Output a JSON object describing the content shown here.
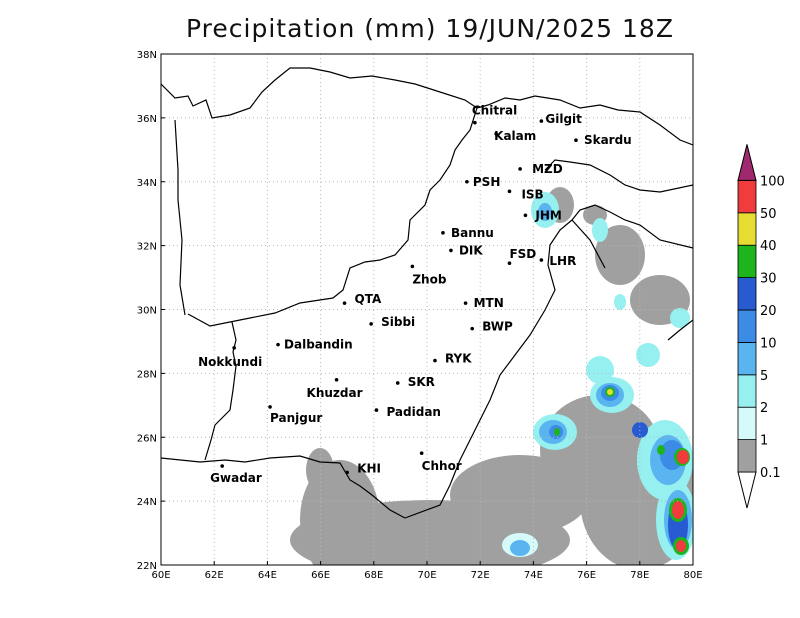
{
  "title": "Precipitation (mm) 19/JUN/2025 18Z",
  "map": {
    "lat_labels": [
      "22N",
      "24N",
      "26N",
      "28N",
      "30N",
      "32N",
      "34N",
      "36N",
      "38N"
    ],
    "lon_labels": [
      "60E",
      "62E",
      "64E",
      "66E",
      "68E",
      "70E",
      "72E",
      "74E",
      "76E",
      "78E",
      "80E"
    ],
    "lat_range": [
      22,
      38
    ],
    "lon_range": [
      60,
      80
    ],
    "grid": true,
    "cities": [
      {
        "name": "Chitral",
        "lon": 71.8,
        "lat": 35.85
      },
      {
        "name": "Gilgit",
        "lon": 74.3,
        "lat": 35.9
      },
      {
        "name": "Kalam",
        "lon": 72.6,
        "lat": 35.5
      },
      {
        "name": "Skardu",
        "lon": 75.6,
        "lat": 35.3
      },
      {
        "name": "MZD",
        "lon": 73.5,
        "lat": 34.4
      },
      {
        "name": "PSH",
        "lon": 71.5,
        "lat": 34.0
      },
      {
        "name": "ISB",
        "lon": 73.1,
        "lat": 33.7
      },
      {
        "name": "JHM",
        "lon": 73.7,
        "lat": 32.95
      },
      {
        "name": "Bannu",
        "lon": 70.6,
        "lat": 32.4
      },
      {
        "name": "DIK",
        "lon": 70.9,
        "lat": 31.85
      },
      {
        "name": "FSD",
        "lon": 73.1,
        "lat": 31.45
      },
      {
        "name": "LHR",
        "lon": 74.3,
        "lat": 31.55
      },
      {
        "name": "Zhob",
        "lon": 69.45,
        "lat": 31.35
      },
      {
        "name": "QTA",
        "lon": 66.9,
        "lat": 30.2
      },
      {
        "name": "MTN",
        "lon": 71.45,
        "lat": 30.2
      },
      {
        "name": "Sibbi",
        "lon": 67.9,
        "lat": 29.55
      },
      {
        "name": "BWP",
        "lon": 71.7,
        "lat": 29.4
      },
      {
        "name": "Nokkundi",
        "lon": 62.75,
        "lat": 28.8
      },
      {
        "name": "Dalbandin",
        "lon": 64.4,
        "lat": 28.9
      },
      {
        "name": "RYK",
        "lon": 70.3,
        "lat": 28.4
      },
      {
        "name": "Khuzdar",
        "lon": 66.6,
        "lat": 27.8
      },
      {
        "name": "SKR",
        "lon": 68.9,
        "lat": 27.7
      },
      {
        "name": "Panjgur",
        "lon": 64.1,
        "lat": 26.95
      },
      {
        "name": "Padidan",
        "lon": 68.1,
        "lat": 26.85
      },
      {
        "name": "Chhor",
        "lon": 69.8,
        "lat": 25.5
      },
      {
        "name": "KHI",
        "lon": 67.0,
        "lat": 24.9
      },
      {
        "name": "Gwadar",
        "lon": 62.3,
        "lat": 25.1
      }
    ]
  },
  "colorbar": {
    "labels": [
      "0.1",
      "1",
      "2",
      "5",
      "10",
      "20",
      "30",
      "40",
      "50",
      "100"
    ],
    "colors": [
      "#a0a0a0",
      "#d6fafa",
      "#96f0f0",
      "#5ab4f0",
      "#3c8ce6",
      "#285ad2",
      "#1eb41e",
      "#e6dc32",
      "#f03c3c",
      "#a0286e"
    ]
  }
}
